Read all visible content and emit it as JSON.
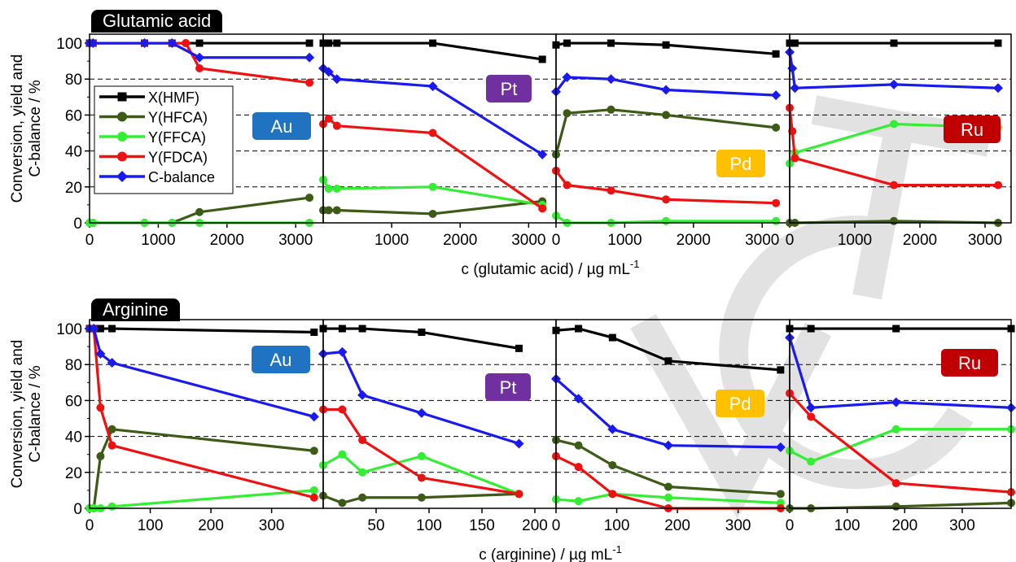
{
  "colors": {
    "X(HMF)": "#000000",
    "Y(HFCA)": "#3d5a16",
    "Y(FFCA)": "#33ee33",
    "Y(FDCA)": "#ee1111",
    "C-balance": "#1a1aee",
    "Au": "#1f73c0",
    "Pt": "#7030a0",
    "Pd": "#ffc000",
    "Ru": "#c00000"
  },
  "legend": [
    "X(HMF)",
    "Y(HFCA)",
    "Y(FFCA)",
    "Y(FDCA)",
    "C-balance"
  ],
  "markers": {
    "X(HMF)": "square",
    "Y(HFCA)": "circle",
    "Y(FFCA)": "circle",
    "Y(FDCA)": "circle",
    "C-balance": "diamond"
  },
  "watermark": "WCT",
  "chart_data": [
    {
      "type": "line",
      "row_label": "Glutamic acid",
      "xlabel": "c (glutamic acid) / µg mL",
      "xlabel_sup": "-1",
      "ylabel_lines": [
        "Conversion, yield and",
        "C-balance / %"
      ],
      "ylim": [
        0,
        105
      ],
      "yticks": [
        0,
        20,
        40,
        60,
        80,
        100
      ],
      "grid": "dashed horizontal at 20, 40, 60, 80",
      "legend_position": "left, inside Au panel",
      "panels": [
        {
          "metal": "Au",
          "xlim": [
            0,
            3400
          ],
          "xticks": [
            0,
            1000,
            2000,
            3000
          ],
          "series": [
            {
              "name": "X(HMF)",
              "x": [
                0,
                50,
                800,
                1200,
                1600,
                3200
              ],
              "y": [
                100,
                100,
                100,
                100,
                100,
                100
              ]
            },
            {
              "name": "Y(HFCA)",
              "x": [
                0,
                50,
                800,
                1200,
                1600,
                3200
              ],
              "y": [
                0,
                0,
                0,
                0,
                6,
                14
              ]
            },
            {
              "name": "Y(FFCA)",
              "x": [
                0,
                50,
                800,
                1200,
                1600,
                3200
              ],
              "y": [
                0,
                0,
                0,
                0,
                0,
                0
              ]
            },
            {
              "name": "Y(FDCA)",
              "x": [
                0,
                50,
                800,
                1200,
                1400,
                1600,
                3200
              ],
              "y": [
                100,
                100,
                100,
                100,
                100,
                86,
                78
              ]
            },
            {
              "name": "C-balance",
              "x": [
                0,
                50,
                800,
                1200,
                1600,
                3200
              ],
              "y": [
                100,
                100,
                100,
                100,
                92,
                92
              ]
            }
          ]
        },
        {
          "metal": "Pt",
          "xlim": [
            0,
            3400
          ],
          "xticks": [
            1000,
            2000,
            3000
          ],
          "series": [
            {
              "name": "X(HMF)",
              "x": [
                0,
                80,
                200,
                1600,
                3200
              ],
              "y": [
                100,
                100,
                100,
                100,
                91
              ]
            },
            {
              "name": "Y(HFCA)",
              "x": [
                0,
                80,
                200,
                1600,
                3200
              ],
              "y": [
                7,
                7,
                7,
                5,
                12
              ]
            },
            {
              "name": "Y(FFCA)",
              "x": [
                0,
                80,
                200,
                1600,
                3200
              ],
              "y": [
                24,
                19,
                19,
                20,
                10
              ]
            },
            {
              "name": "Y(FDCA)",
              "x": [
                0,
                80,
                200,
                1600,
                3200
              ],
              "y": [
                55,
                58,
                54,
                50,
                8
              ]
            },
            {
              "name": "C-balance",
              "x": [
                0,
                80,
                200,
                1600,
                3200
              ],
              "y": [
                86,
                84,
                80,
                76,
                38
              ]
            }
          ]
        },
        {
          "metal": "Pd",
          "xlim": [
            0,
            3400
          ],
          "xticks": [
            0,
            1000,
            2000,
            3000
          ],
          "series": [
            {
              "name": "X(HMF)",
              "x": [
                0,
                160,
                800,
                1600,
                3200
              ],
              "y": [
                99,
                100,
                100,
                99,
                94
              ]
            },
            {
              "name": "Y(HFCA)",
              "x": [
                0,
                160,
                800,
                1600,
                3200
              ],
              "y": [
                38,
                61,
                63,
                60,
                53
              ]
            },
            {
              "name": "Y(FFCA)",
              "x": [
                0,
                160,
                800,
                1600,
                3200
              ],
              "y": [
                4,
                0,
                0,
                1,
                1
              ]
            },
            {
              "name": "Y(FDCA)",
              "x": [
                0,
                160,
                800,
                1600,
                3200
              ],
              "y": [
                29,
                21,
                18,
                13,
                11
              ]
            },
            {
              "name": "C-balance",
              "x": [
                0,
                160,
                800,
                1600,
                3200
              ],
              "y": [
                73,
                81,
                80,
                74,
                71
              ]
            }
          ]
        },
        {
          "metal": "Ru",
          "xlim": [
            0,
            3400
          ],
          "xticks": [
            0,
            1000,
            2000,
            3000
          ],
          "series": [
            {
              "name": "X(HMF)",
              "x": [
                0,
                80,
                1600,
                3200
              ],
              "y": [
                100,
                100,
                100,
                100
              ]
            },
            {
              "name": "Y(HFCA)",
              "x": [
                0,
                80,
                1600,
                3200
              ],
              "y": [
                0,
                0,
                1,
                0
              ]
            },
            {
              "name": "Y(FFCA)",
              "x": [
                0,
                80,
                1600,
                3200
              ],
              "y": [
                33,
                39,
                55,
                53
              ]
            },
            {
              "name": "Y(FDCA)",
              "x": [
                0,
                40,
                80,
                1600,
                3200
              ],
              "y": [
                64,
                51,
                36,
                21,
                21
              ]
            },
            {
              "name": "C-balance",
              "x": [
                0,
                40,
                80,
                1600,
                3200
              ],
              "y": [
                95,
                86,
                75,
                77,
                75
              ]
            }
          ]
        }
      ]
    },
    {
      "type": "line",
      "row_label": "Arginine",
      "xlabel": "c (arginine) / µg mL",
      "xlabel_sup": "-1",
      "ylabel_lines": [
        "Conversion, yield and",
        "C-balance / %"
      ],
      "ylim": [
        0,
        105
      ],
      "yticks": [
        0,
        20,
        40,
        60,
        80,
        100
      ],
      "grid": "dashed horizontal at 20, 40, 60, 80",
      "panels": [
        {
          "metal": "Au",
          "xlim": [
            0,
            385
          ],
          "xticks": [
            0,
            100,
            200,
            300
          ],
          "series": [
            {
              "name": "X(HMF)",
              "x": [
                0,
                7,
                18,
                37,
                370
              ],
              "y": [
                100,
                100,
                100,
                100,
                98
              ]
            },
            {
              "name": "Y(HFCA)",
              "x": [
                0,
                7,
                18,
                37,
                370
              ],
              "y": [
                0,
                0,
                29,
                44,
                32
              ]
            },
            {
              "name": "Y(FFCA)",
              "x": [
                0,
                7,
                18,
                37,
                370
              ],
              "y": [
                0,
                0,
                0,
                1,
                10
              ]
            },
            {
              "name": "Y(FDCA)",
              "x": [
                0,
                7,
                18,
                37,
                370
              ],
              "y": [
                100,
                100,
                56,
                35,
                6
              ]
            },
            {
              "name": "C-balance",
              "x": [
                0,
                7,
                18,
                37,
                370
              ],
              "y": [
                100,
                100,
                86,
                81,
                51
              ]
            }
          ]
        },
        {
          "metal": "Pt",
          "xlim": [
            0,
            220
          ],
          "xticks": [
            50,
            100,
            150,
            200
          ],
          "series": [
            {
              "name": "X(HMF)",
              "x": [
                0,
                18,
                37,
                93,
                185
              ],
              "y": [
                100,
                100,
                100,
                98,
                89
              ]
            },
            {
              "name": "Y(HFCA)",
              "x": [
                0,
                18,
                37,
                93,
                185
              ],
              "y": [
                7,
                3,
                6,
                6,
                8
              ]
            },
            {
              "name": "Y(FFCA)",
              "x": [
                0,
                18,
                37,
                93,
                185
              ],
              "y": [
                24,
                30,
                20,
                29,
                8
              ]
            },
            {
              "name": "Y(FDCA)",
              "x": [
                0,
                18,
                37,
                93,
                185
              ],
              "y": [
                55,
                55,
                38,
                17,
                8
              ]
            },
            {
              "name": "C-balance",
              "x": [
                0,
                18,
                37,
                93,
                185
              ],
              "y": [
                86,
                87,
                63,
                53,
                36
              ]
            }
          ]
        },
        {
          "metal": "Pd",
          "xlim": [
            0,
            385
          ],
          "xticks": [
            0,
            100,
            200,
            300
          ],
          "series": [
            {
              "name": "X(HMF)",
              "x": [
                0,
                37,
                93,
                185,
                370
              ],
              "y": [
                99,
                100,
                95,
                82,
                77
              ]
            },
            {
              "name": "Y(HFCA)",
              "x": [
                0,
                37,
                93,
                185,
                370
              ],
              "y": [
                38,
                35,
                24,
                12,
                8
              ]
            },
            {
              "name": "Y(FFCA)",
              "x": [
                0,
                37,
                93,
                185,
                370
              ],
              "y": [
                5,
                4,
                8,
                6,
                3
              ]
            },
            {
              "name": "Y(FDCA)",
              "x": [
                0,
                37,
                93,
                185,
                370
              ],
              "y": [
                29,
                23,
                8,
                0,
                0
              ]
            },
            {
              "name": "C-balance",
              "x": [
                0,
                37,
                93,
                185,
                370
              ],
              "y": [
                72,
                61,
                44,
                35,
                34
              ]
            }
          ]
        },
        {
          "metal": "Ru",
          "xlim": [
            0,
            385
          ],
          "xticks": [
            0,
            100,
            200,
            300
          ],
          "series": [
            {
              "name": "X(HMF)",
              "x": [
                0,
                37,
                185,
                385
              ],
              "y": [
                100,
                100,
                100,
                100
              ]
            },
            {
              "name": "Y(HFCA)",
              "x": [
                0,
                37,
                185,
                385
              ],
              "y": [
                0,
                0,
                1,
                3
              ]
            },
            {
              "name": "Y(FFCA)",
              "x": [
                0,
                37,
                185,
                385
              ],
              "y": [
                32,
                26,
                44,
                44
              ]
            },
            {
              "name": "Y(FDCA)",
              "x": [
                0,
                37,
                185,
                385
              ],
              "y": [
                64,
                51,
                14,
                9
              ]
            },
            {
              "name": "C-balance",
              "x": [
                0,
                37,
                185,
                385
              ],
              "y": [
                95,
                56,
                59,
                56
              ]
            }
          ]
        }
      ]
    }
  ]
}
